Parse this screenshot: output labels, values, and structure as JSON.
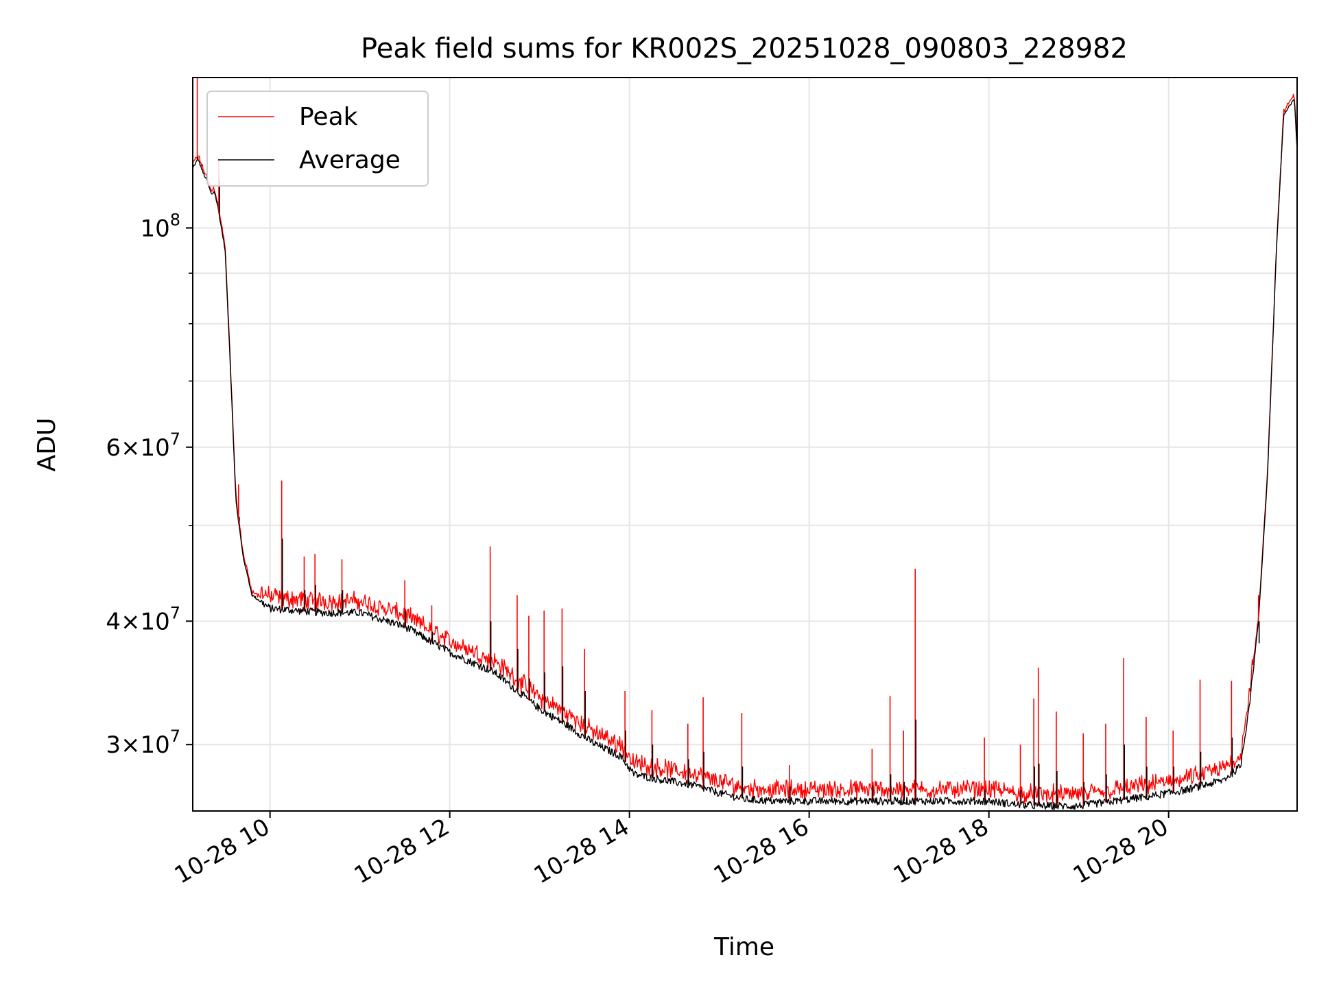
{
  "chart_data": {
    "type": "line",
    "title": "Peak field sums for KR002S_20251028_090803_228982",
    "xlabel": "Time",
    "ylabel": "ADU",
    "yscale": "log",
    "xlim_hours": [
      9.14,
      21.43
    ],
    "ylim": [
      25700000,
      142000000
    ],
    "grid": true,
    "legend_position": "upper-left",
    "x_ticks": [
      {
        "value": 10,
        "label": "10-28 10"
      },
      {
        "value": 12,
        "label": "10-28 12"
      },
      {
        "value": 14,
        "label": "10-28 14"
      },
      {
        "value": 16,
        "label": "10-28 16"
      },
      {
        "value": 18,
        "label": "10-28 18"
      },
      {
        "value": 20,
        "label": "10-28 20"
      }
    ],
    "y_major_ticks": [
      {
        "value": 100000000,
        "base": "10",
        "exp": "8"
      },
      {
        "value": 60000000,
        "base": "6×10",
        "exp": "7"
      },
      {
        "value": 40000000,
        "base": "4×10",
        "exp": "7"
      },
      {
        "value": 30000000,
        "base": "3×10",
        "exp": "7"
      }
    ],
    "y_minor_ticks": [
      50000000,
      70000000,
      80000000,
      90000000
    ],
    "baseline": {
      "x_hours": [
        9.14,
        9.2,
        9.25,
        9.3,
        9.35,
        9.38,
        9.42,
        9.5,
        9.56,
        9.62,
        9.7,
        9.8,
        10.0,
        10.3,
        10.6,
        11.0,
        11.5,
        12.0,
        12.5,
        13.0,
        13.3,
        13.6,
        13.9,
        14.05,
        14.3,
        14.7,
        15.0,
        15.3,
        15.6,
        16.0,
        16.5,
        17.0,
        17.5,
        18.0,
        18.3,
        18.6,
        19.0,
        19.4,
        19.8,
        20.2,
        20.6,
        20.8,
        20.9,
        21.0,
        21.1,
        21.2,
        21.28,
        21.35,
        21.4,
        21.43
      ],
      "y_adu": [
        115000000,
        117500000,
        114000000,
        111500000,
        108000000,
        109000000,
        105000000,
        95000000,
        72000000,
        53000000,
        46500000,
        42500000,
        41200000,
        41000000,
        40800000,
        40800000,
        39500000,
        37200000,
        35500000,
        32600000,
        31400000,
        30100000,
        29200000,
        28000000,
        27700000,
        27300000,
        26800000,
        26400000,
        26300000,
        26300000,
        26300000,
        26300000,
        26300000,
        26300000,
        26100000,
        26000000,
        26000000,
        26300000,
        26600000,
        27000000,
        27600000,
        28500000,
        33000000,
        40000000,
        56000000,
        95000000,
        130000000,
        133000000,
        135000000,
        120000000
      ]
    },
    "spikes": [
      {
        "t": 9.19,
        "peak": 142000000,
        "avg": 118000000
      },
      {
        "t": 9.43,
        "peak": 117500000,
        "avg": 112000000
      },
      {
        "t": 9.65,
        "peak": 55000000,
        "avg": 51000000
      },
      {
        "t": 10.13,
        "peak": 55500000,
        "avg": 48500000
      },
      {
        "t": 10.38,
        "peak": 46500000,
        "avg": 43000000
      },
      {
        "t": 10.5,
        "peak": 46800000,
        "avg": 43500000
      },
      {
        "t": 10.8,
        "peak": 46200000,
        "avg": 43000000
      },
      {
        "t": 11.5,
        "peak": 44000000,
        "avg": 41000000
      },
      {
        "t": 11.8,
        "peak": 41500000,
        "avg": 39000000
      },
      {
        "t": 12.45,
        "peak": 47600000,
        "avg": 40000000
      },
      {
        "t": 12.75,
        "peak": 42500000,
        "avg": 37500000
      },
      {
        "t": 12.88,
        "peak": 40500000,
        "avg": 35000000
      },
      {
        "t": 13.05,
        "peak": 41000000,
        "avg": 35500000
      },
      {
        "t": 13.25,
        "peak": 41200000,
        "avg": 36000000
      },
      {
        "t": 13.5,
        "peak": 37500000,
        "avg": 34000000
      },
      {
        "t": 13.95,
        "peak": 34000000,
        "avg": 31000000
      },
      {
        "t": 14.25,
        "peak": 32500000,
        "avg": 30000000
      },
      {
        "t": 14.65,
        "peak": 31500000,
        "avg": 29000000
      },
      {
        "t": 14.82,
        "peak": 33500000,
        "avg": 29500000
      },
      {
        "t": 15.25,
        "peak": 32300000,
        "avg": 28500000
      },
      {
        "t": 15.78,
        "peak": 28600000,
        "avg": 27200000
      },
      {
        "t": 16.7,
        "peak": 29700000,
        "avg": 27300000
      },
      {
        "t": 16.9,
        "peak": 33600000,
        "avg": 28000000
      },
      {
        "t": 17.05,
        "peak": 31000000,
        "avg": 27500000
      },
      {
        "t": 17.18,
        "peak": 45200000,
        "avg": 31800000
      },
      {
        "t": 17.95,
        "peak": 30500000,
        "avg": 27000000
      },
      {
        "t": 18.35,
        "peak": 30000000,
        "avg": 27000000
      },
      {
        "t": 18.5,
        "peak": 33400000,
        "avg": 28500000
      },
      {
        "t": 18.55,
        "peak": 35900000,
        "avg": 28700000
      },
      {
        "t": 18.75,
        "peak": 32400000,
        "avg": 28200000
      },
      {
        "t": 19.05,
        "peak": 30800000,
        "avg": 27500000
      },
      {
        "t": 19.3,
        "peak": 31500000,
        "avg": 28000000
      },
      {
        "t": 19.5,
        "peak": 36700000,
        "avg": 30000000
      },
      {
        "t": 19.75,
        "peak": 32000000,
        "avg": 28500000
      },
      {
        "t": 20.05,
        "peak": 31000000,
        "avg": 28500000
      },
      {
        "t": 20.35,
        "peak": 34900000,
        "avg": 29500000
      },
      {
        "t": 20.7,
        "peak": 34800000,
        "avg": 30500000
      },
      {
        "t": 21.0,
        "peak": 42500000,
        "avg": 38000000
      }
    ]
  },
  "legend": {
    "items": [
      {
        "label": "Peak",
        "color": "#ff0000"
      },
      {
        "label": "Average",
        "color": "#000000"
      }
    ]
  },
  "colors": {
    "peak": "#ff0000",
    "average": "#000000",
    "grid": "#e6e6e6",
    "axes": "#000000"
  }
}
